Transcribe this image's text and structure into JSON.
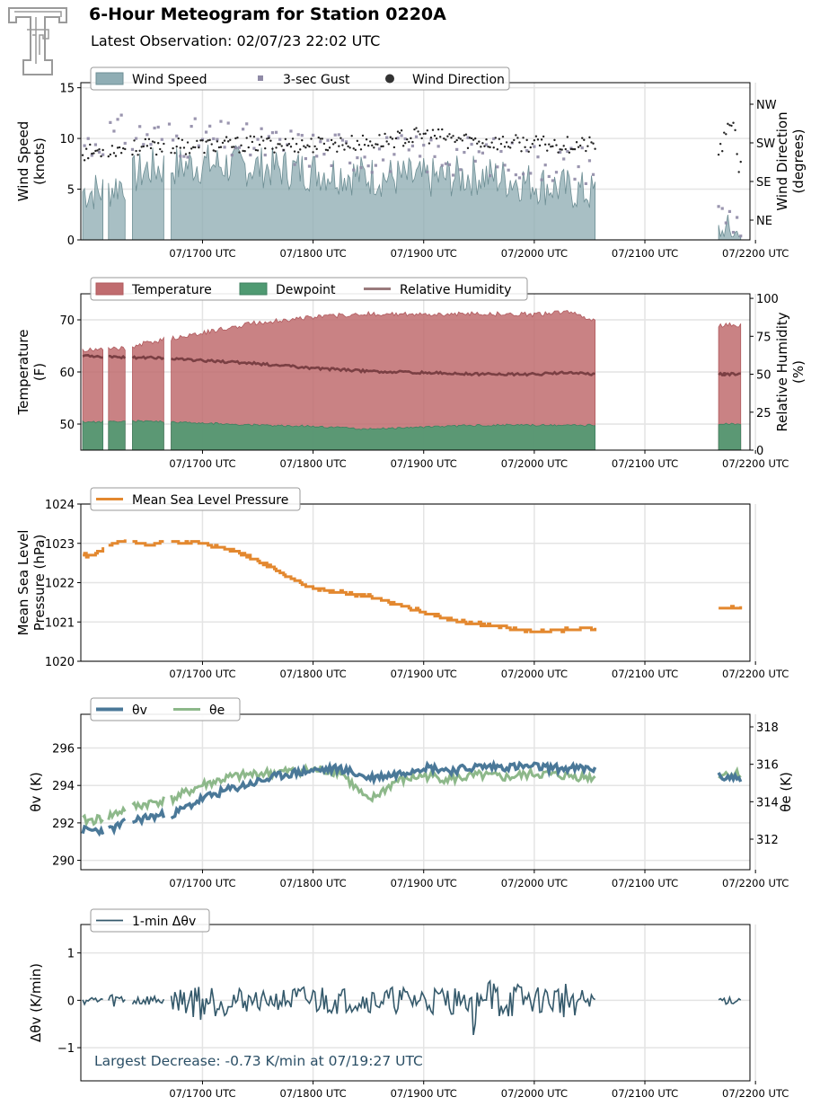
{
  "header": {
    "title": "6-Hour Meteogram for Station 0220A",
    "subtitle": "Latest Observation: 02/07/23 22:02 UTC"
  },
  "colors": {
    "wind_speed": "#8fadb4",
    "gust": "#8f8aa6",
    "wind_direction": "#222222",
    "temperature": "#c06c6f",
    "dewpoint": "#4f9a72",
    "rh": "#7a3f43",
    "mslp": "#e3882f",
    "theta_v": "#4a7898",
    "theta_e": "#8db88a",
    "dtheta": "#34596b",
    "annotation": "#2b4f66"
  },
  "x_ticks": [
    "07/1700 UTC",
    "07/1800 UTC",
    "07/1900 UTC",
    "07/2000 UTC",
    "07/2100 UTC",
    "07/2200 UTC"
  ],
  "chart_data": [
    {
      "type": "area",
      "ylabel": "Wind Speed\n(knots)",
      "y2label": "Wind Direction\n(degrees)",
      "ylim": [
        0,
        15.5
      ],
      "yticks": [
        "0",
        "5",
        "10",
        "15"
      ],
      "y2ticks": [
        "NE",
        "SE",
        "SW",
        "NW"
      ],
      "grid": true,
      "legend": [
        "Wind Speed",
        "3-sec Gust",
        "Wind Direction"
      ],
      "x_hours": [
        16.0,
        16.125,
        16.5,
        17.0,
        17.5,
        18.0,
        18.5,
        19.0,
        19.5,
        20.0,
        20.55,
        21.65,
        21.8,
        21.85
      ],
      "series": [
        {
          "name": "Wind Speed",
          "values": [
            4.8,
            4.8,
            7.0,
            7.5,
            7.2,
            6.8,
            6.3,
            6.0,
            6.4,
            5.6,
            4.5,
            0.6,
            0.5,
            0.6
          ]
        },
        {
          "name": "3-sec Gust",
          "values": [
            9.5,
            10.5,
            10.2,
            10.0,
            9.4,
            9.0,
            8.6,
            8.4,
            8.3,
            7.8,
            7.5,
            2.5,
            2.2,
            1.6
          ]
        },
        {
          "name": "Wind Direction",
          "values": [
            203,
            210,
            215,
            218,
            222,
            220,
            225,
            243,
            228,
            222,
            220,
            188,
            285,
            170
          ]
        }
      ]
    },
    {
      "type": "area",
      "ylabel": "Temperature\n(F)",
      "y2label": "Relative Humidity\n(%)",
      "ylim": [
        45,
        75
      ],
      "yticks": [
        "50",
        "60",
        "70"
      ],
      "y2ticks": [
        "0",
        "25",
        "50",
        "75",
        "100"
      ],
      "grid": true,
      "legend": [
        "Temperature",
        "Dewpoint",
        "Relative Humidity"
      ],
      "x_hours": [
        16.0,
        16.3,
        16.5,
        17.0,
        17.5,
        18.0,
        18.5,
        19.0,
        19.5,
        20.0,
        20.3,
        20.55,
        21.7
      ],
      "series": [
        {
          "name": "Temperature",
          "values": [
            64.2,
            64.6,
            65.6,
            67.5,
            69.5,
            70.5,
            71.2,
            71.0,
            71.2,
            71.0,
            71.5,
            70.0,
            69.0
          ]
        },
        {
          "name": "Dewpoint",
          "values": [
            50.4,
            50.5,
            50.6,
            50.2,
            49.8,
            49.6,
            49.0,
            49.4,
            49.8,
            49.8,
            49.8,
            49.8,
            50.0
          ]
        },
        {
          "name": "Relative Humidity",
          "values": [
            62,
            61,
            61,
            59,
            57,
            54,
            52,
            51,
            50,
            50,
            51,
            50,
            50
          ]
        }
      ]
    },
    {
      "type": "line",
      "ylabel": "Mean Sea Level\nPressure (hPa)",
      "ylim": [
        1020,
        1024
      ],
      "yticks": [
        "1020",
        "1021",
        "1022",
        "1023",
        "1024"
      ],
      "grid": true,
      "legend": [
        "Mean Sea Level Pressure"
      ],
      "x_hours": [
        16.0,
        16.15,
        16.3,
        16.5,
        16.65,
        17.0,
        17.3,
        17.5,
        17.75,
        18.0,
        18.25,
        18.5,
        18.75,
        19.0,
        19.25,
        19.5,
        19.75,
        20.0,
        20.25,
        20.55,
        21.85
      ],
      "series": [
        {
          "name": "Mean Sea Level Pressure",
          "values": [
            1022.7,
            1022.95,
            1023.1,
            1022.95,
            1023.05,
            1023.0,
            1022.8,
            1022.55,
            1022.2,
            1021.85,
            1021.75,
            1021.65,
            1021.45,
            1021.25,
            1021.05,
            1020.95,
            1020.85,
            1020.75,
            1020.8,
            1020.85,
            1021.4
          ]
        }
      ]
    },
    {
      "type": "line",
      "ylabel": "θv (K)",
      "y2label": "θe (K)",
      "ylim": [
        289.5,
        297.8
      ],
      "yticks": [
        "290",
        "292",
        "294",
        "296"
      ],
      "y2ticks": [
        "312",
        "314",
        "316",
        "318"
      ],
      "grid": true,
      "legend": [
        "θv",
        "θe"
      ],
      "x_hours": [
        16.0,
        16.15,
        16.3,
        16.5,
        16.75,
        17.0,
        17.25,
        17.5,
        17.75,
        18.0,
        18.25,
        18.5,
        18.75,
        19.0,
        19.25,
        19.5,
        19.75,
        20.0,
        20.25,
        20.55,
        21.85
      ],
      "series": [
        {
          "name": "θv",
          "values": [
            291.6,
            291.6,
            292.0,
            292.3,
            292.5,
            293.3,
            293.8,
            294.2,
            294.6,
            294.8,
            294.9,
            294.4,
            294.6,
            295.0,
            294.8,
            295.0,
            295.0,
            295.0,
            294.9,
            294.9,
            294.4
          ]
        },
        {
          "name": "θe",
          "values": [
            313.0,
            313.2,
            313.6,
            313.9,
            314.2,
            314.9,
            315.3,
            315.5,
            315.6,
            315.7,
            315.6,
            314.0,
            315.1,
            315.4,
            315.2,
            315.4,
            315.3,
            315.5,
            315.4,
            315.3,
            315.5
          ]
        }
      ]
    },
    {
      "type": "line",
      "ylabel": "Δθv (K/min)",
      "ylim": [
        -1.7,
        1.6
      ],
      "yticks": [
        "−1",
        "0",
        "1"
      ],
      "grid": true,
      "legend": [
        "1-min Δθv"
      ],
      "annotation": "Largest Decrease: -0.73 K/min at 07/19:27 UTC",
      "x_hours": [
        16.0,
        16.3,
        16.6,
        17.0,
        17.3,
        17.6,
        18.0,
        18.3,
        18.6,
        19.0,
        19.3,
        19.45,
        19.6,
        20.0,
        20.3,
        20.55
      ],
      "series": [
        {
          "name": "1-min Δθv",
          "values": [
            0.1,
            0.2,
            0.1,
            0.5,
            0.3,
            0.2,
            0.4,
            0.3,
            0.3,
            0.35,
            0.35,
            -0.73,
            0.6,
            0.3,
            0.45,
            0.1
          ]
        }
      ]
    }
  ]
}
